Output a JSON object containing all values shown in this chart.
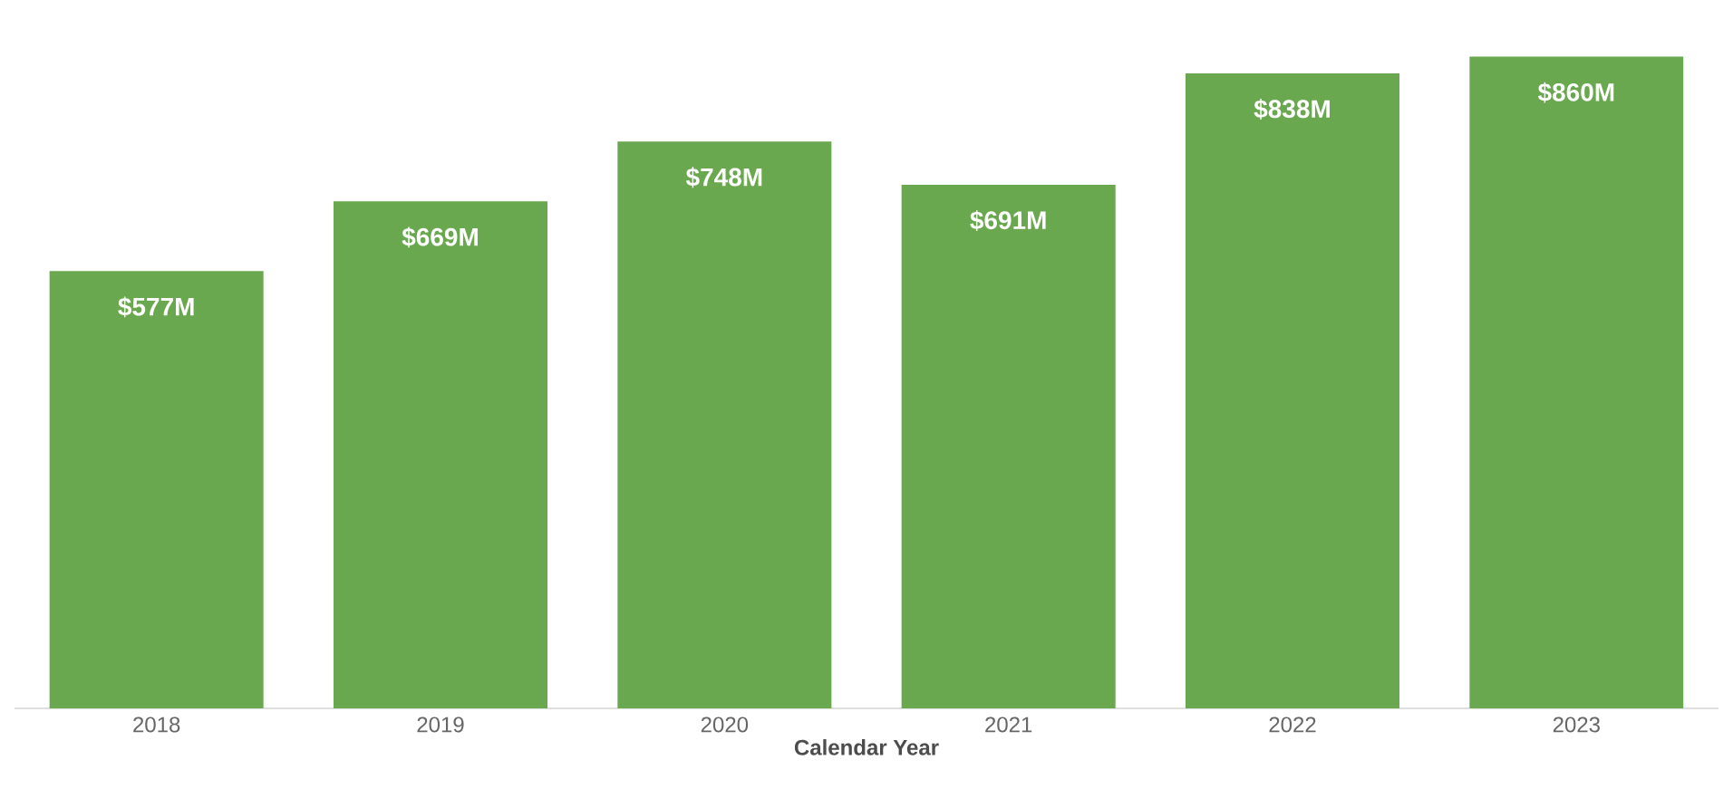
{
  "chart_data": {
    "type": "bar",
    "xlabel": "Calendar Year",
    "categories": [
      "2018",
      "2019",
      "2020",
      "2021",
      "2022",
      "2023"
    ],
    "values": [
      577,
      669,
      748,
      691,
      838,
      860
    ],
    "value_labels": [
      "$577M",
      "$669M",
      "$748M",
      "$691M",
      "$838M",
      "$860M"
    ],
    "color": "#6aa84f"
  }
}
